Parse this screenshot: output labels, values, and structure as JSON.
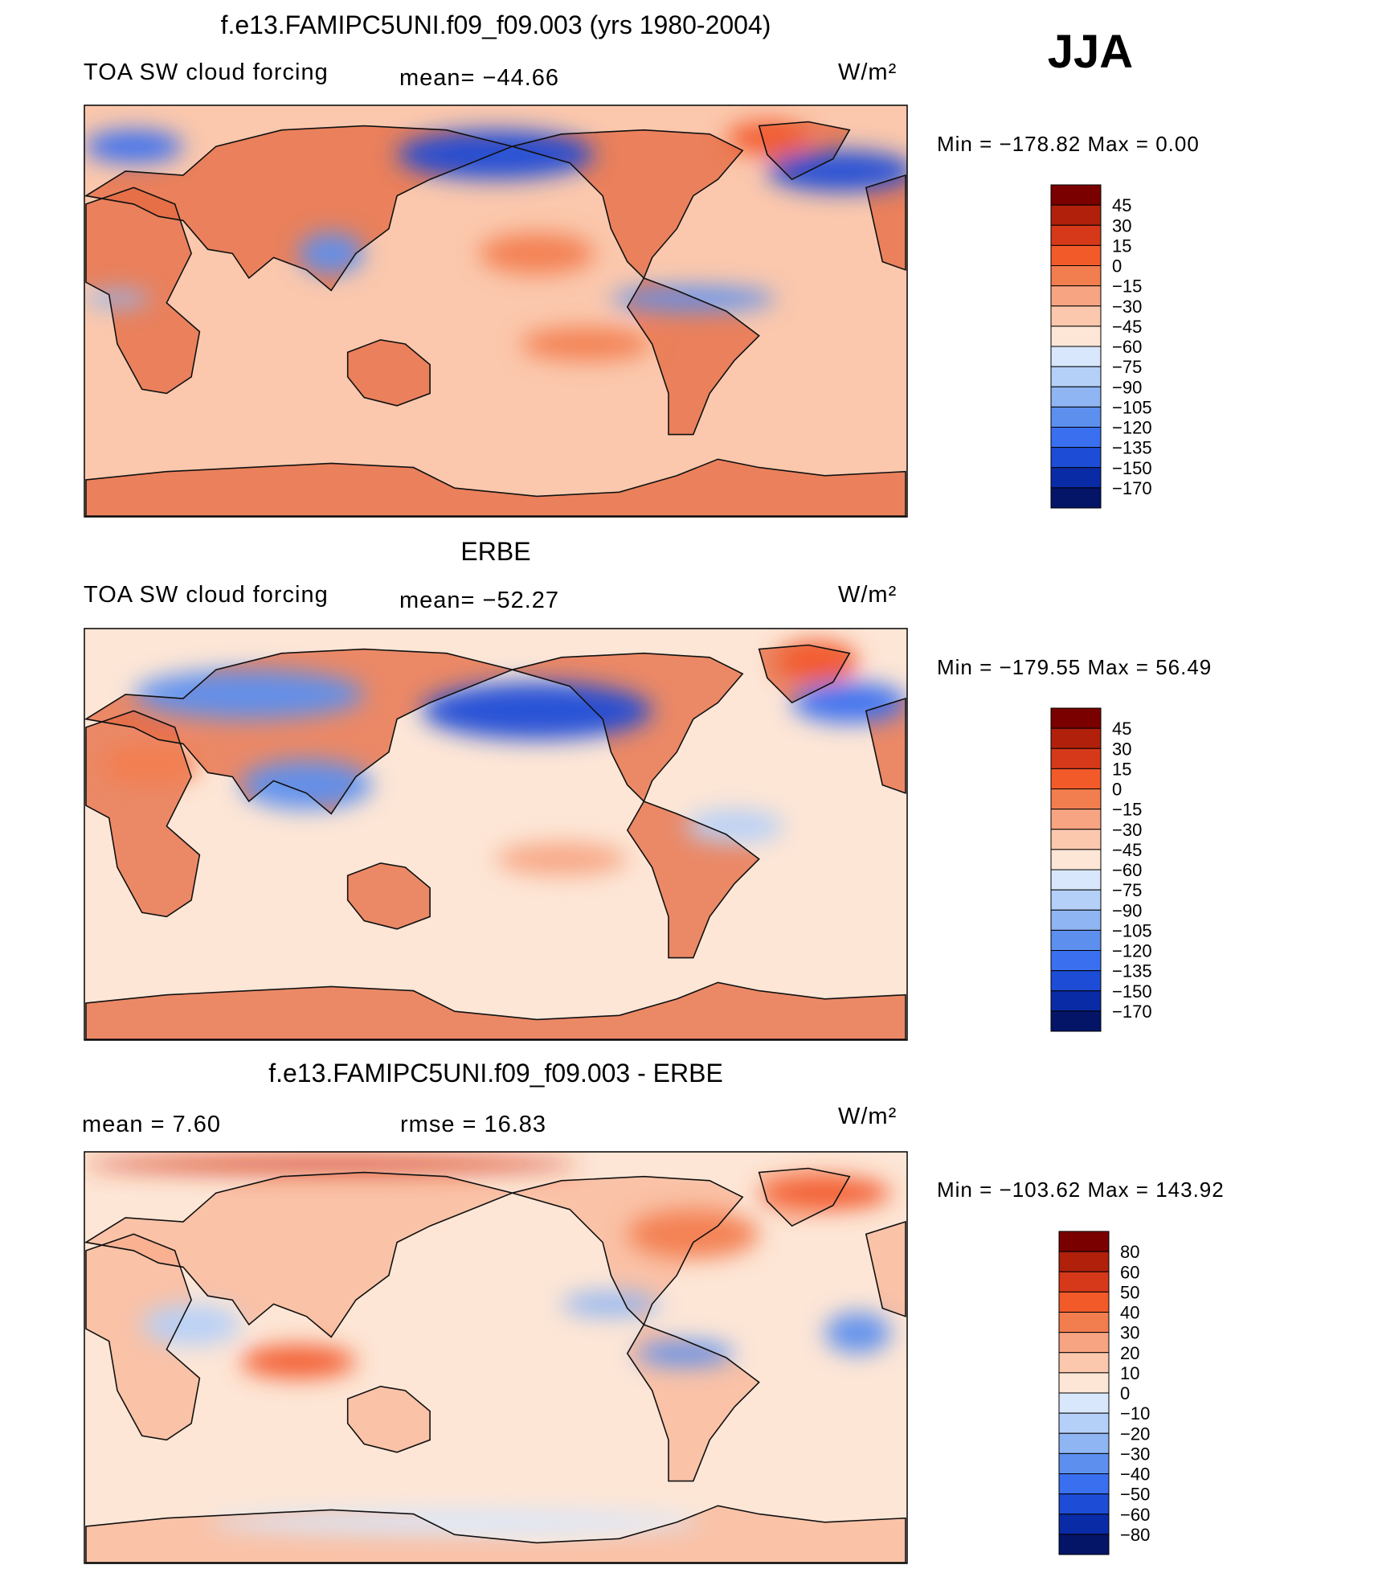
{
  "season": "JJA",
  "colors": {
    "ocean_warm": "#fbc6ad",
    "continent": "#e46a42",
    "outline": "#111111",
    "frame": "#000000"
  },
  "chart_data": [
    {
      "type": "heatmap",
      "title": "f.e13.FAMIPC5UNI.f09_f09.003 (yrs 1980-2004)",
      "left_label": "TOA SW cloud forcing",
      "stat_text": "mean=  −44.66",
      "units": "W/m²",
      "minmax": "Min  =  −178.82  Max  =     0.00",
      "mean": -44.66,
      "min": -178.82,
      "max": 0.0,
      "colorbar": {
        "levels": [
          "45",
          "30",
          "15",
          "0",
          "−15",
          "−30",
          "−45",
          "−60",
          "−75",
          "−90",
          "−105",
          "−120",
          "−135",
          "−150",
          "−170"
        ],
        "colors": [
          "#7a0000",
          "#b0200a",
          "#d6391a",
          "#f25a2a",
          "#f27d4f",
          "#f7a482",
          "#fbc8ad",
          "#fde6d6",
          "#d8e7fb",
          "#b5d0f8",
          "#8fb5f2",
          "#5d8fee",
          "#3a6ff0",
          "#1d4cd6",
          "#0a2ba6",
          "#041466"
        ]
      },
      "fields": [
        {
          "lon": 0.5,
          "lat": 0.12,
          "rx": 0.12,
          "ry": 0.06,
          "v": -150
        },
        {
          "lon": 0.06,
          "lat": 0.1,
          "rx": 0.06,
          "ry": 0.04,
          "v": -135
        },
        {
          "lon": 0.92,
          "lat": 0.16,
          "rx": 0.09,
          "ry": 0.05,
          "v": -150
        },
        {
          "lon": 0.3,
          "lat": 0.36,
          "rx": 0.04,
          "ry": 0.05,
          "v": -120
        },
        {
          "lon": 0.74,
          "lat": 0.47,
          "rx": 0.1,
          "ry": 0.03,
          "v": -120
        },
        {
          "lon": 0.04,
          "lat": 0.47,
          "rx": 0.04,
          "ry": 0.02,
          "v": -105
        },
        {
          "lon": 0.55,
          "lat": 0.36,
          "rx": 0.07,
          "ry": 0.05,
          "v": -15
        },
        {
          "lon": 0.61,
          "lat": 0.58,
          "rx": 0.08,
          "ry": 0.04,
          "v": -15
        },
        {
          "lon": 0.83,
          "lat": 0.08,
          "rx": 0.05,
          "ry": 0.04,
          "v": 0
        }
      ]
    },
    {
      "type": "heatmap",
      "title": "ERBE",
      "left_label": "TOA SW cloud forcing",
      "stat_text": "mean=  −52.27",
      "units": "W/m²",
      "minmax": "Min  =  −179.55  Max  =    56.49",
      "mean": -52.27,
      "min": -179.55,
      "max": 56.49,
      "colorbar": {
        "levels": [
          "45",
          "30",
          "15",
          "0",
          "−15",
          "−30",
          "−45",
          "−60",
          "−75",
          "−90",
          "−105",
          "−120",
          "−135",
          "−150",
          "−170"
        ],
        "colors": [
          "#7a0000",
          "#b0200a",
          "#d6391a",
          "#f25a2a",
          "#f27d4f",
          "#f7a482",
          "#fbc8ad",
          "#fde6d6",
          "#d8e7fb",
          "#b5d0f8",
          "#8fb5f2",
          "#5d8fee",
          "#3a6ff0",
          "#1d4cd6",
          "#0a2ba6",
          "#041466"
        ]
      },
      "fields": [
        {
          "lon": 0.55,
          "lat": 0.2,
          "rx": 0.14,
          "ry": 0.07,
          "v": -150
        },
        {
          "lon": 0.2,
          "lat": 0.16,
          "rx": 0.14,
          "ry": 0.06,
          "v": -120
        },
        {
          "lon": 0.93,
          "lat": 0.18,
          "rx": 0.07,
          "ry": 0.05,
          "v": -135
        },
        {
          "lon": 0.27,
          "lat": 0.38,
          "rx": 0.08,
          "ry": 0.06,
          "v": -120
        },
        {
          "lon": 0.79,
          "lat": 0.48,
          "rx": 0.06,
          "ry": 0.04,
          "v": -90
        },
        {
          "lon": 0.08,
          "lat": 0.33,
          "rx": 0.06,
          "ry": 0.05,
          "v": -15
        },
        {
          "lon": 0.58,
          "lat": 0.56,
          "rx": 0.08,
          "ry": 0.04,
          "v": -30
        },
        {
          "lon": 0.89,
          "lat": 0.08,
          "rx": 0.05,
          "ry": 0.05,
          "v": 0
        }
      ]
    },
    {
      "type": "heatmap",
      "title": "f.e13.FAMIPC5UNI.f09_f09.003 - ERBE",
      "left_label": "mean  =     7.60",
      "stat_text": "rmse  =    16.83",
      "units": "W/m²",
      "minmax": "Min  =  −103.62  Max  =  143.92",
      "mean": 7.6,
      "rmse": 16.83,
      "min": -103.62,
      "max": 143.92,
      "colorbar": {
        "levels": [
          "80",
          "60",
          "50",
          "40",
          "30",
          "20",
          "10",
          "0",
          "−10",
          "−20",
          "−30",
          "−40",
          "−50",
          "−60",
          "−80"
        ],
        "colors": [
          "#7a0000",
          "#b0200a",
          "#d6391a",
          "#f25a2a",
          "#f27d4f",
          "#f7a482",
          "#fbc8ad",
          "#fde6d6",
          "#d8e7fb",
          "#b5d0f8",
          "#8fb5f2",
          "#5d8fee",
          "#3a6ff0",
          "#1d4cd6",
          "#0a2ba6",
          "#041466"
        ]
      },
      "fields": [
        {
          "lon": 0.3,
          "lat": 0.03,
          "rx": 0.3,
          "ry": 0.02,
          "v": 50
        },
        {
          "lon": 0.9,
          "lat": 0.1,
          "rx": 0.08,
          "ry": 0.04,
          "v": 40
        },
        {
          "lon": 0.74,
          "lat": 0.2,
          "rx": 0.08,
          "ry": 0.06,
          "v": 30
        },
        {
          "lon": 0.26,
          "lat": 0.51,
          "rx": 0.07,
          "ry": 0.04,
          "v": 40
        },
        {
          "lon": 0.73,
          "lat": 0.49,
          "rx": 0.06,
          "ry": 0.03,
          "v": -40
        },
        {
          "lon": 0.64,
          "lat": 0.37,
          "rx": 0.06,
          "ry": 0.03,
          "v": -30
        },
        {
          "lon": 0.94,
          "lat": 0.44,
          "rx": 0.04,
          "ry": 0.05,
          "v": -40
        },
        {
          "lon": 0.13,
          "lat": 0.42,
          "rx": 0.06,
          "ry": 0.05,
          "v": -20
        },
        {
          "lon": 0.45,
          "lat": 0.9,
          "rx": 0.3,
          "ry": 0.03,
          "v": -10
        }
      ]
    }
  ]
}
